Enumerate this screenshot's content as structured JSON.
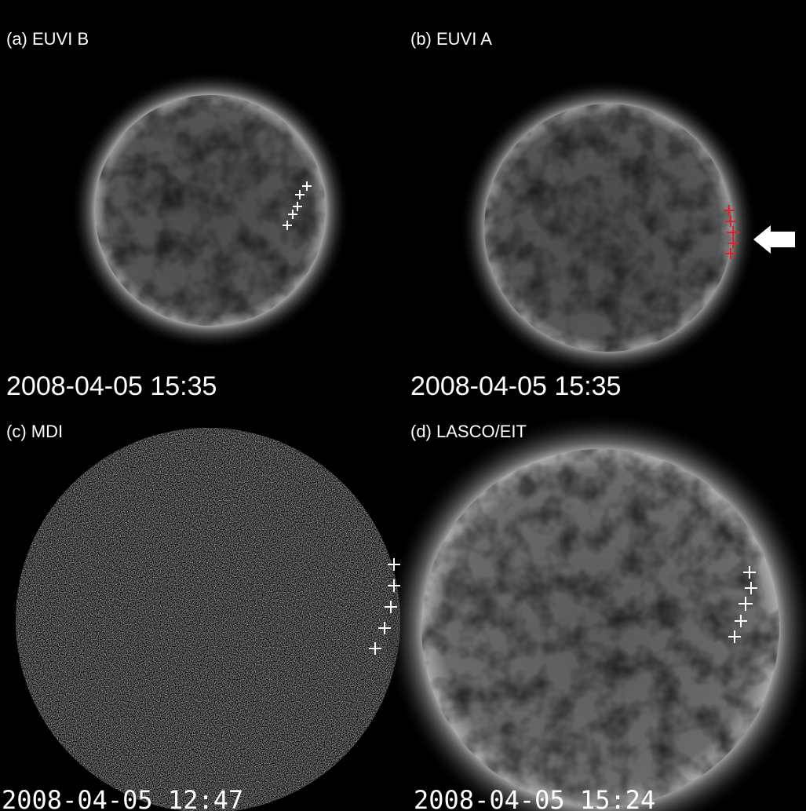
{
  "panels": [
    {
      "label": "(a) EUVI B",
      "timestamp": "2008-04-05 15:35"
    },
    {
      "label": "(b) EUVI A",
      "timestamp": "2008-04-05 15:35"
    },
    {
      "label": "(c) MDI",
      "timestamp": "2008-04-05 12:47"
    },
    {
      "label": "(d) LASCO/EIT",
      "timestamp": "2008-04-05 15:24"
    }
  ]
}
